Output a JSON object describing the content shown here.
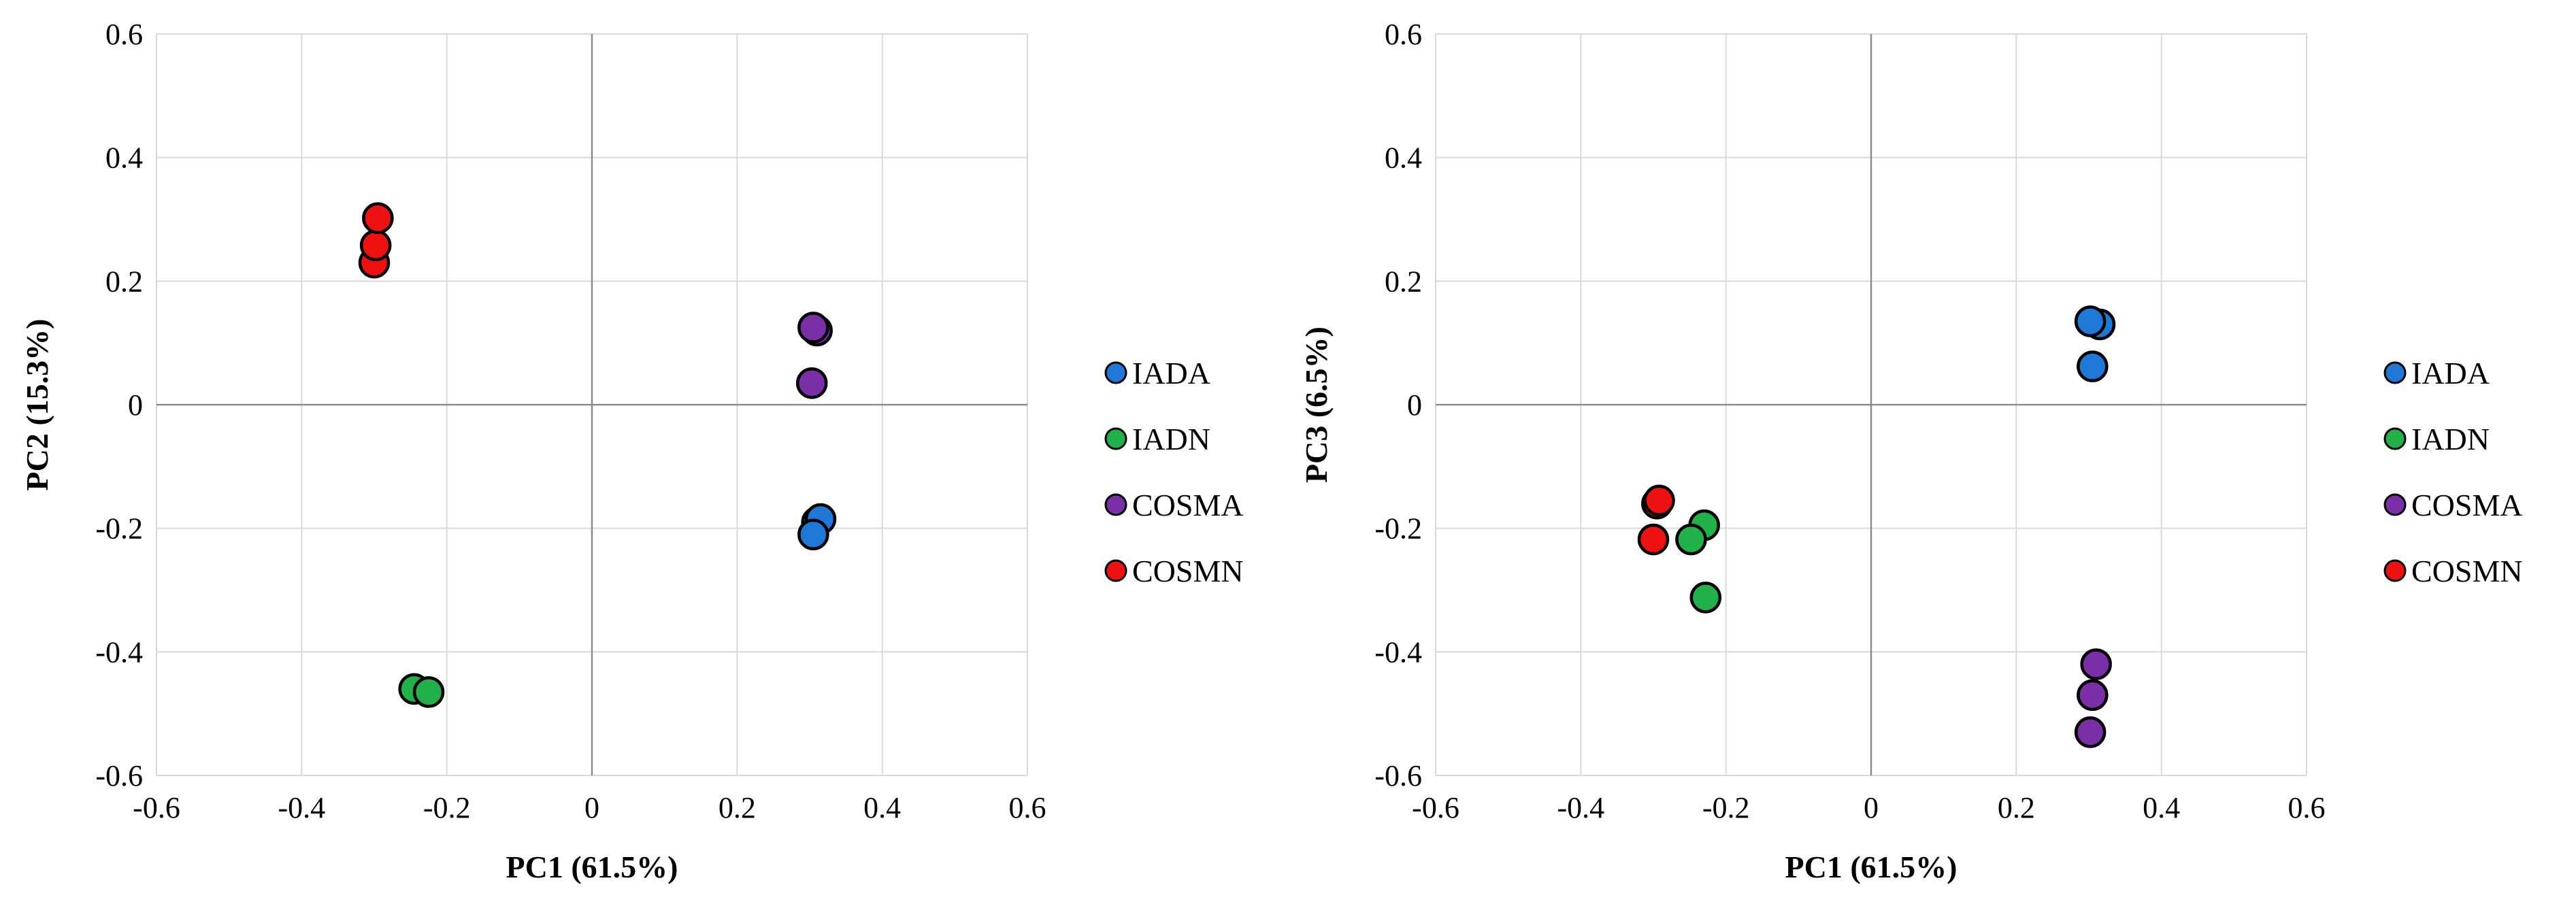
{
  "series_colors": {
    "IADA": "#1f77d6",
    "IADN": "#22b04a",
    "COSMA": "#7a2fa6",
    "COSMN": "#ee1111"
  },
  "chart_data": [
    {
      "type": "scatter",
      "xlabel": "PC1 (61.5%)",
      "ylabel": "PC2 (15.3%)",
      "xlim": [
        -0.6,
        0.6
      ],
      "ylim": [
        -0.6,
        0.6
      ],
      "x_ticks": [
        "-0.6",
        "-0.4",
        "-0.2",
        "0",
        "0.2",
        "0.4",
        "0.6"
      ],
      "y_ticks": [
        "-0.6",
        "-0.4",
        "-0.2",
        "0",
        "0.2",
        "0.4",
        "0.6"
      ],
      "grid": true,
      "legend": "right",
      "series": [
        {
          "name": "IADA",
          "points": [
            [
              0.31,
              -0.19
            ],
            [
              0.315,
              -0.185
            ],
            [
              0.305,
              -0.21
            ]
          ]
        },
        {
          "name": "IADN",
          "points": [
            [
              -0.245,
              -0.46
            ],
            [
              -0.225,
              -0.465
            ]
          ]
        },
        {
          "name": "COSMA",
          "points": [
            [
              0.31,
              0.12
            ],
            [
              0.305,
              0.125
            ],
            [
              0.303,
              0.035
            ]
          ]
        },
        {
          "name": "COSMN",
          "points": [
            [
              -0.3,
              0.23
            ],
            [
              -0.298,
              0.258
            ],
            [
              -0.295,
              0.302
            ]
          ]
        }
      ]
    },
    {
      "type": "scatter",
      "xlabel": "PC1 (61.5%)",
      "ylabel": "PC3 (6.5%)",
      "xlim": [
        -0.6,
        0.6
      ],
      "ylim": [
        -0.6,
        0.6
      ],
      "x_ticks": [
        "-0.6",
        "-0.4",
        "-0.2",
        "0",
        "0.2",
        "0.4",
        "0.6"
      ],
      "y_ticks": [
        "-0.6",
        "-0.4",
        "-0.2",
        "0",
        "0.2",
        "0.4",
        "0.6"
      ],
      "grid": true,
      "legend": "right",
      "series": [
        {
          "name": "IADA",
          "points": [
            [
              0.315,
              0.13
            ],
            [
              0.302,
              0.135
            ],
            [
              0.305,
              0.062
            ]
          ]
        },
        {
          "name": "IADN",
          "points": [
            [
              -0.23,
              -0.195
            ],
            [
              -0.248,
              -0.218
            ],
            [
              -0.228,
              -0.312
            ]
          ]
        },
        {
          "name": "COSMA",
          "points": [
            [
              0.31,
              -0.42
            ],
            [
              0.305,
              -0.47
            ],
            [
              0.302,
              -0.53
            ]
          ]
        },
        {
          "name": "COSMN",
          "points": [
            [
              -0.295,
              -0.16
            ],
            [
              -0.292,
              -0.155
            ],
            [
              -0.3,
              -0.218
            ]
          ]
        }
      ]
    }
  ]
}
